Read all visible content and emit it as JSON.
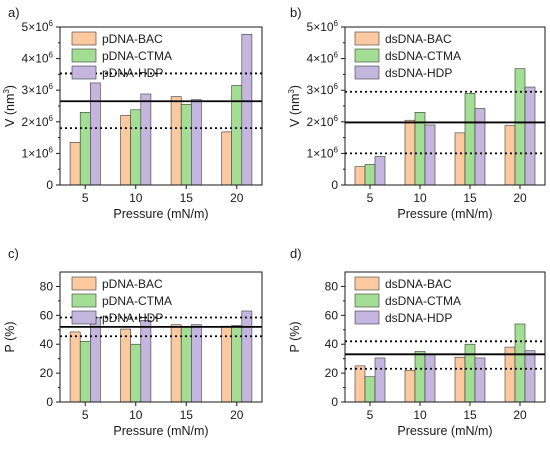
{
  "colors": {
    "pDNA-BAC": "#fcc9a0",
    "pDNA-CTMA": "#a4de95",
    "pDNA-HDP": "#c4b6df",
    "dsDNA-BAC": "#fcc9a0",
    "dsDNA-CTMA": "#a4de95",
    "dsDNA-HDP": "#c4b6df",
    "bar_edge": "#3a3a3a",
    "axis": "#1a1a1a"
  },
  "chart_data": [
    {
      "panel": "a)",
      "type": "bar",
      "xlabel": "Pressure (mN/m)",
      "ylabel_main": "V (nm",
      "ylabel_sup": "3",
      "ylabel_end": ")",
      "categories": [
        "5",
        "10",
        "15",
        "20"
      ],
      "ylim": [
        0,
        5000000
      ],
      "yticks": [
        {
          "value": 0,
          "base": "0",
          "exp": ""
        },
        {
          "value": 1000000,
          "base": "1×10",
          "exp": "6"
        },
        {
          "value": 2000000,
          "base": "2×10",
          "exp": "6"
        },
        {
          "value": 3000000,
          "base": "3×10",
          "exp": "6"
        },
        {
          "value": 4000000,
          "base": "4×10",
          "exp": "6"
        },
        {
          "value": 5000000,
          "base": "5×10",
          "exp": "6"
        }
      ],
      "series": [
        {
          "name": "pDNA-BAC",
          "values": [
            1350000,
            2200000,
            2800000,
            1680000
          ]
        },
        {
          "name": "pDNA-CTMA",
          "values": [
            2300000,
            2380000,
            2550000,
            3150000
          ]
        },
        {
          "name": "pDNA-HDP",
          "values": [
            3230000,
            2880000,
            2700000,
            4770000
          ]
        }
      ],
      "mean_line": 2650000,
      "dotted_lines": [
        3530000,
        1800000
      ],
      "legend_position": "top-left"
    },
    {
      "panel": "b)",
      "type": "bar",
      "xlabel": "Pressure (mN/m)",
      "ylabel_main": "V (nm",
      "ylabel_sup": "3",
      "ylabel_end": ")",
      "categories": [
        "5",
        "10",
        "15",
        "20"
      ],
      "ylim": [
        0,
        5000000
      ],
      "yticks": [
        {
          "value": 0,
          "base": "0",
          "exp": ""
        },
        {
          "value": 1000000,
          "base": "1×10",
          "exp": "6"
        },
        {
          "value": 2000000,
          "base": "2×10",
          "exp": "6"
        },
        {
          "value": 3000000,
          "base": "3×10",
          "exp": "6"
        },
        {
          "value": 4000000,
          "base": "4×10",
          "exp": "6"
        },
        {
          "value": 5000000,
          "base": "5×10",
          "exp": "6"
        }
      ],
      "series": [
        {
          "name": "dsDNA-BAC",
          "values": [
            580000,
            2050000,
            1650000,
            1880000
          ]
        },
        {
          "name": "dsDNA-CTMA",
          "values": [
            650000,
            2300000,
            2900000,
            3680000
          ]
        },
        {
          "name": "dsDNA-HDP",
          "values": [
            900000,
            1900000,
            2420000,
            3100000
          ]
        }
      ],
      "mean_line": 1980000,
      "dotted_lines": [
        2950000,
        1000000
      ],
      "legend_position": "top-left"
    },
    {
      "panel": "c)",
      "type": "bar",
      "xlabel": "Pressure (mN/m)",
      "ylabel_main": "P (%)",
      "ylabel_sup": "",
      "ylabel_end": "",
      "categories": [
        "5",
        "10",
        "15",
        "20"
      ],
      "ylim": [
        0,
        90
      ],
      "yticks": [
        {
          "value": 0,
          "base": "0",
          "exp": ""
        },
        {
          "value": 20,
          "base": "20",
          "exp": ""
        },
        {
          "value": 40,
          "base": "40",
          "exp": ""
        },
        {
          "value": 60,
          "base": "60",
          "exp": ""
        },
        {
          "value": 80,
          "base": "80",
          "exp": ""
        }
      ],
      "series": [
        {
          "name": "pDNA-BAC",
          "values": [
            48.5,
            50.5,
            53.5,
            52.5
          ]
        },
        {
          "name": "pDNA-CTMA",
          "values": [
            42,
            40,
            52,
            53
          ]
        },
        {
          "name": "pDNA-HDP",
          "values": [
            58.5,
            56.5,
            53.5,
            63
          ]
        }
      ],
      "mean_line": 52,
      "dotted_lines": [
        58.5,
        45.5
      ],
      "legend_position": "top-left"
    },
    {
      "panel": "d)",
      "type": "bar",
      "xlabel": "Pressure (mN/m)",
      "ylabel_main": "P (%)",
      "ylabel_sup": "",
      "ylabel_end": "",
      "categories": [
        "5",
        "10",
        "15",
        "20"
      ],
      "ylim": [
        0,
        90
      ],
      "yticks": [
        {
          "value": 0,
          "base": "0",
          "exp": ""
        },
        {
          "value": 20,
          "base": "20",
          "exp": ""
        },
        {
          "value": 40,
          "base": "40",
          "exp": ""
        },
        {
          "value": 60,
          "base": "60",
          "exp": ""
        },
        {
          "value": 80,
          "base": "80",
          "exp": ""
        }
      ],
      "series": [
        {
          "name": "dsDNA-BAC",
          "values": [
            25,
            22,
            31,
            38
          ]
        },
        {
          "name": "dsDNA-CTMA",
          "values": [
            17.5,
            35,
            40,
            54
          ]
        },
        {
          "name": "dsDNA-HDP",
          "values": [
            30.5,
            33,
            30.5,
            35.5
          ]
        }
      ],
      "mean_line": 33,
      "dotted_lines": [
        42,
        23
      ],
      "legend_position": "top-left"
    }
  ]
}
